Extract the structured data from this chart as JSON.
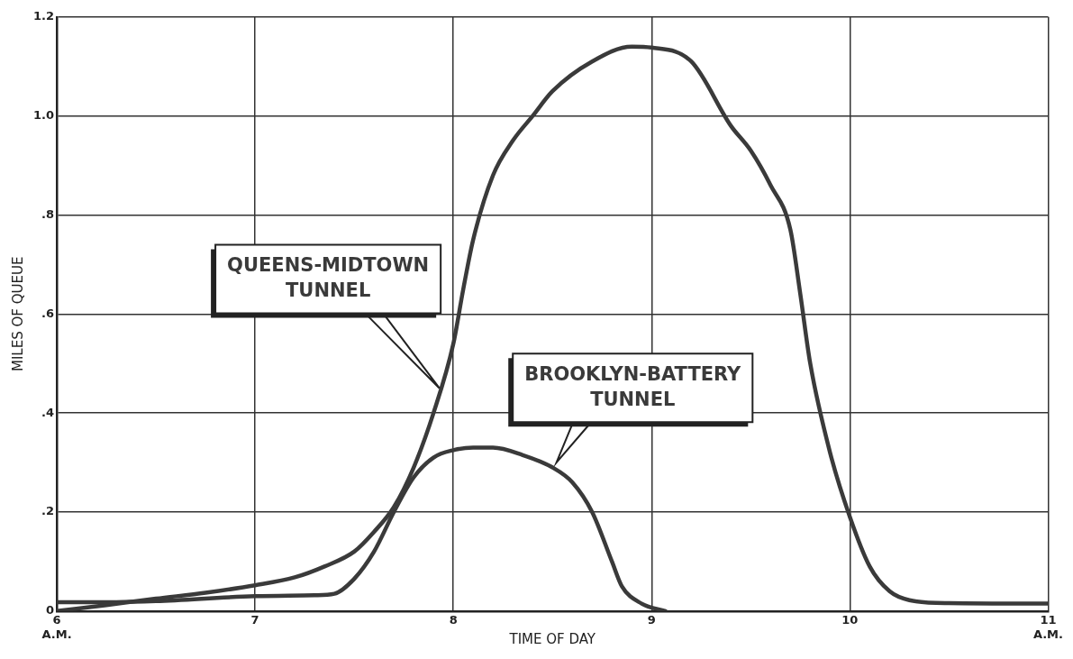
{
  "chart_data": {
    "type": "line",
    "xlabel": "TIME OF DAY",
    "ylabel": "MILES OF QUEUE",
    "xlim": [
      6,
      11
    ],
    "ylim": [
      0,
      1.2
    ],
    "xticks": [
      {
        "value": 6,
        "label": "6\nA.M."
      },
      7,
      8,
      9,
      10,
      {
        "value": 11,
        "label": "11\nA.M."
      }
    ],
    "yticks": [
      0,
      {
        "value": 0.2,
        "label": ".2"
      },
      {
        "value": 0.4,
        "label": ".4"
      },
      {
        "value": 0.6,
        "label": ".6"
      },
      {
        "value": 0.8,
        "label": ".8"
      },
      {
        "value": 1.0,
        "label": "1.0"
      },
      {
        "value": 1.2,
        "label": "1.2"
      }
    ],
    "grid": true,
    "legend": false,
    "marker": "none",
    "line_style": "solid",
    "series": [
      {
        "name": "QUEENS-MIDTOWN TUNNEL",
        "color": "#3a3a3a",
        "x": [
          6,
          6.25,
          6.5,
          6.75,
          7,
          7.2,
          7.35,
          7.5,
          7.6,
          7.7,
          7.8,
          7.9,
          8,
          8.05,
          8.1,
          8.2,
          8.3,
          8.4,
          8.5,
          8.7,
          8.9,
          9,
          9.2,
          9.4,
          9.5,
          9.6,
          9.7,
          9.75,
          9.8,
          9.9,
          10,
          10.1,
          10.2,
          10.3,
          10.5,
          11
        ],
        "values": [
          0,
          0.012,
          0.025,
          0.037,
          0.052,
          0.068,
          0.09,
          0.12,
          0.16,
          0.21,
          0.29,
          0.4,
          0.54,
          0.65,
          0.75,
          0.88,
          0.95,
          1.0,
          1.05,
          1.11,
          1.14,
          1.138,
          1.11,
          0.98,
          0.93,
          0.86,
          0.77,
          0.64,
          0.5,
          0.32,
          0.19,
          0.09,
          0.04,
          0.022,
          0.016,
          0.015
        ]
      },
      {
        "name": "BROOKLYN-BATTERY TUNNEL",
        "color": "#3a3a3a",
        "x": [
          6,
          6.3,
          6.5,
          7,
          7.3,
          7.4,
          7.5,
          7.6,
          7.7,
          7.8,
          7.9,
          8,
          8.1,
          8.2,
          8.35,
          8.5,
          8.6,
          8.7,
          8.8,
          8.85,
          8.95,
          9.07
        ],
        "values": [
          0.018,
          0.018,
          0.02,
          0.03,
          0.032,
          0.035,
          0.065,
          0.12,
          0.2,
          0.27,
          0.31,
          0.325,
          0.33,
          0.33,
          0.315,
          0.29,
          0.26,
          0.2,
          0.1,
          0.05,
          0.015,
          0
        ]
      }
    ]
  }
}
